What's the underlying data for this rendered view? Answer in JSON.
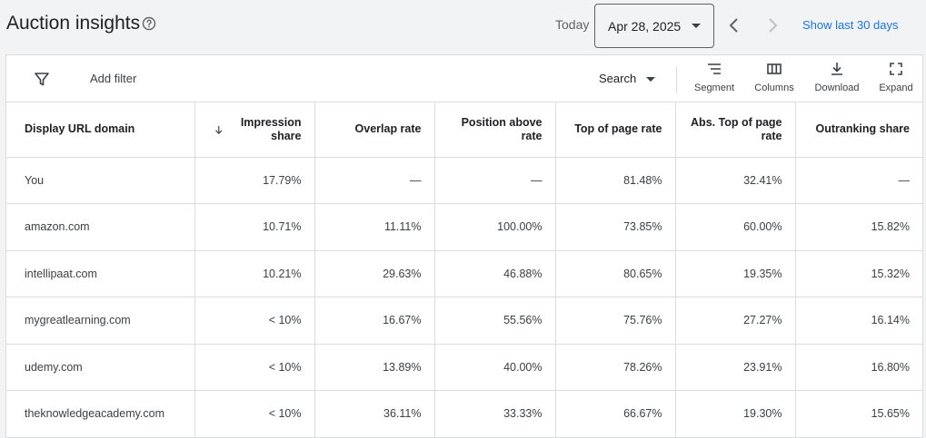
{
  "header": {
    "title": "Auction insights",
    "today_label": "Today",
    "date_value": "Apr 28, 2025",
    "show_last_label": "Show last 30 days"
  },
  "toolbar": {
    "add_filter_label": "Add filter",
    "search_label": "Search",
    "segment_label": "Segment",
    "columns_label": "Columns",
    "download_label": "Download",
    "expand_label": "Expand"
  },
  "table": {
    "headers": [
      "Display URL domain",
      "Impression share",
      "Overlap rate",
      "Position above rate",
      "Top of page rate",
      "Abs. Top of page rate",
      "Outranking share"
    ],
    "rows": [
      [
        "You",
        "17.79%",
        "—",
        "—",
        "81.48%",
        "32.41%",
        "—"
      ],
      [
        "amazon.com",
        "10.71%",
        "11.11%",
        "100.00%",
        "73.85%",
        "60.00%",
        "15.82%"
      ],
      [
        "intellipaat.com",
        "10.21%",
        "29.63%",
        "46.88%",
        "80.65%",
        "19.35%",
        "15.32%"
      ],
      [
        "mygreatlearning.com",
        "< 10%",
        "16.67%",
        "55.56%",
        "75.76%",
        "27.27%",
        "16.14%"
      ],
      [
        "udemy.com",
        "< 10%",
        "13.89%",
        "40.00%",
        "78.26%",
        "23.91%",
        "16.80%"
      ],
      [
        "theknowledgeacademy.com",
        "< 10%",
        "36.11%",
        "33.33%",
        "66.67%",
        "19.30%",
        "15.65%"
      ]
    ]
  },
  "colors": {
    "accent": "#1a73e8",
    "text": "#202124",
    "border": "#dadce0",
    "background": "#f1f3f4"
  },
  "icons": {
    "help": "help-circle-icon",
    "filter": "filter-icon",
    "segment": "segment-icon",
    "columns": "columns-icon",
    "download": "download-icon",
    "expand": "expand-icon",
    "sort": "arrow-down-icon"
  }
}
